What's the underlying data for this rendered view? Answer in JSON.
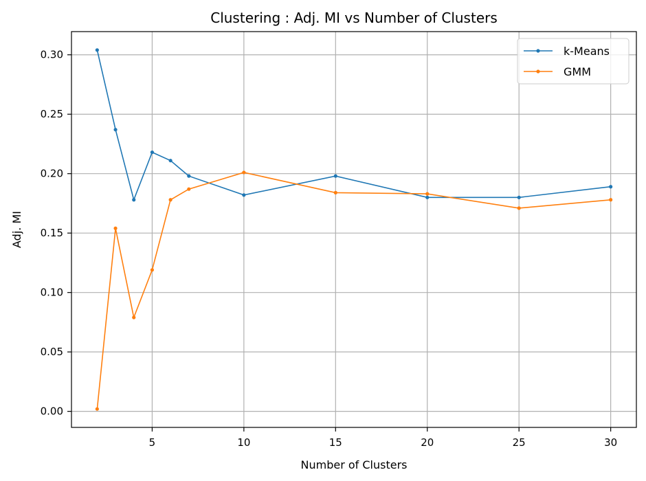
{
  "chart_data": {
    "type": "line",
    "title": "Clustering : Adj. MI vs Number of Clusters",
    "xlabel": "Number of Clusters",
    "ylabel": "Adj. MI",
    "x": [
      2,
      3,
      4,
      5,
      6,
      7,
      10,
      15,
      20,
      25,
      30
    ],
    "xlim": [
      0.6,
      31.4
    ],
    "ylim": [
      -0.0135,
      0.3195
    ],
    "xticks": [
      5,
      10,
      15,
      20,
      25,
      30
    ],
    "yticks": [
      0.0,
      0.05,
      0.1,
      0.15,
      0.2,
      0.25,
      0.3
    ],
    "xtick_labels": [
      "5",
      "10",
      "15",
      "20",
      "25",
      "30"
    ],
    "ytick_labels": [
      "0.00",
      "0.05",
      "0.10",
      "0.15",
      "0.20",
      "0.25",
      "0.30"
    ],
    "grid": true,
    "legend_position": "top-right",
    "series": [
      {
        "name": "k-Means",
        "color": "#1f77b4",
        "values": [
          0.304,
          0.237,
          0.178,
          0.218,
          0.211,
          0.198,
          0.182,
          0.198,
          0.18,
          0.18,
          0.189
        ]
      },
      {
        "name": "GMM",
        "color": "#ff7f0e",
        "values": [
          0.002,
          0.154,
          0.079,
          0.119,
          0.178,
          0.187,
          0.201,
          0.184,
          0.183,
          0.171,
          0.178
        ]
      }
    ]
  }
}
